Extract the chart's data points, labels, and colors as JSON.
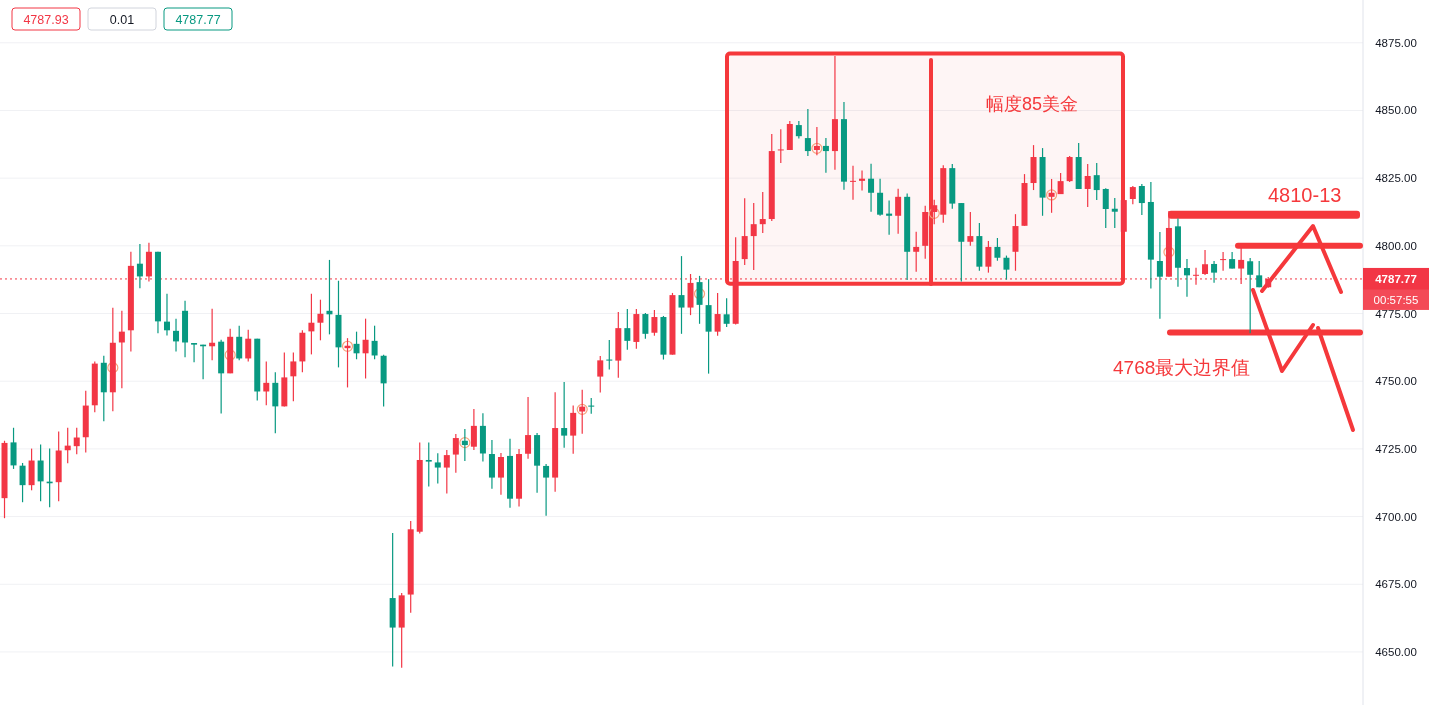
{
  "chart_data": {
    "type": "candlestick",
    "categories": [
      null,
      null,
      null,
      null,
      null,
      null,
      null,
      null,
      null,
      null,
      null,
      null,
      null,
      null,
      null,
      null,
      null,
      null,
      null,
      null,
      null,
      null,
      null,
      null,
      null,
      null,
      null,
      null,
      null,
      null,
      null,
      null,
      null,
      null,
      null,
      null,
      null,
      null,
      null,
      null,
      null,
      null,
      null,
      null,
      null,
      null,
      null,
      null,
      null,
      null,
      null,
      null,
      null,
      null,
      null,
      null,
      null,
      null,
      null,
      null,
      null,
      null,
      null,
      null,
      null,
      null,
      null,
      null,
      null,
      null,
      null,
      null,
      null,
      null,
      null,
      null,
      null,
      null,
      null,
      null,
      null,
      null,
      null,
      null,
      null,
      null,
      null,
      null,
      null,
      null,
      null,
      null,
      null,
      null,
      null,
      null,
      null,
      null,
      null,
      null,
      null,
      null,
      null,
      null,
      null,
      null,
      null,
      null,
      null,
      null,
      null,
      null,
      null,
      null,
      null,
      null,
      null,
      null,
      null,
      null,
      null,
      null,
      null,
      null,
      null,
      null,
      null,
      null,
      null,
      null,
      null,
      null,
      null,
      null,
      null,
      null,
      null,
      null,
      null,
      null,
      null,
      null,
      null,
      null,
      null,
      null,
      null,
      null,
      null,
      null,
      null
    ],
    "ohlc": [
      [
        4706.8,
        4728.0,
        4699.4,
        4727.2
      ],
      [
        4727.4,
        4732.8,
        4717.6,
        4718.9
      ],
      [
        4718.8,
        4719.8,
        4705.3,
        4711.6
      ],
      [
        4711.6,
        4725.1,
        4709.7,
        4720.7
      ],
      [
        4720.7,
        4726.6,
        4705.7,
        4713.0
      ],
      [
        4712.9,
        4725.1,
        4703.4,
        4712.3
      ],
      [
        4712.7,
        4731.4,
        4705.7,
        4724.4
      ],
      [
        4724.5,
        4732.8,
        4719.7,
        4726.2
      ],
      [
        4726.0,
        4732.8,
        4723.0,
        4729.2
      ],
      [
        4729.3,
        4746.5,
        4723.7,
        4741.0
      ],
      [
        4741.1,
        4757.3,
        4738.5,
        4756.5
      ],
      [
        4756.8,
        4759.4,
        4735.2,
        4745.9
      ],
      [
        4745.9,
        4777.1,
        4738.9,
        4764.2
      ],
      [
        4764.3,
        4776.0,
        4747.4,
        4768.3
      ],
      [
        4768.8,
        4797.8,
        4761.0,
        4792.6
      ],
      [
        4793.4,
        4800.7,
        4784.3,
        4788.7
      ],
      [
        4788.7,
        4801.1,
        4786.8,
        4797.8
      ],
      [
        4797.8,
        4797.8,
        4767.7,
        4772.1
      ],
      [
        4772.0,
        4782.3,
        4766.9,
        4768.8
      ],
      [
        4768.6,
        4773.1,
        4761.0,
        4764.7
      ],
      [
        4776.0,
        4779.7,
        4758.8,
        4764.3
      ],
      [
        4764.1,
        4764.1,
        4757.0,
        4763.5
      ],
      [
        4763.5,
        4763.5,
        4750.7,
        4762.9
      ],
      [
        4762.9,
        4776.8,
        4757.7,
        4764.2
      ],
      [
        4764.6,
        4765.3,
        4738.1,
        4752.9
      ],
      [
        4752.9,
        4769.4,
        4752.9,
        4766.4
      ],
      [
        4766.4,
        4770.5,
        4757.7,
        4758.4
      ],
      [
        4758.4,
        4769.0,
        4757.3,
        4765.7
      ],
      [
        4765.7,
        4765.7,
        4742.9,
        4746.2
      ],
      [
        4746.2,
        4757.3,
        4741.1,
        4749.4
      ],
      [
        4749.4,
        4753.3,
        4730.8,
        4740.7
      ],
      [
        4740.7,
        4760.6,
        4740.7,
        4751.4
      ],
      [
        4751.8,
        4760.6,
        4742.6,
        4757.3
      ],
      [
        4757.3,
        4768.8,
        4753.3,
        4767.9
      ],
      [
        4768.4,
        4782.3,
        4759.9,
        4771.6
      ],
      [
        4771.6,
        4780.1,
        4765.1,
        4774.9
      ],
      [
        4776.0,
        4794.8,
        4767.3,
        4774.7
      ],
      [
        4774.5,
        4787.1,
        4755.1,
        4762.5
      ],
      [
        4762.2,
        4765.9,
        4747.7,
        4763.1
      ],
      [
        4763.8,
        4768.3,
        4758.1,
        4760.3
      ],
      [
        4760.3,
        4773.1,
        4751.0,
        4765.3
      ],
      [
        4764.9,
        4770.5,
        4758.1,
        4759.5
      ],
      [
        4759.4,
        4759.8,
        4740.7,
        4749.2
      ],
      [
        4669.9,
        4693.9,
        4644.6,
        4659.0
      ],
      [
        4659.0,
        4671.8,
        4644.2,
        4670.9
      ],
      [
        4671.2,
        4698.4,
        4664.5,
        4695.3
      ],
      [
        4694.4,
        4727.4,
        4693.7,
        4720.9
      ],
      [
        4720.9,
        4727.4,
        4711.1,
        4720.3
      ],
      [
        4720.0,
        4723.4,
        4712.2,
        4718.1
      ],
      [
        4718.1,
        4724.6,
        4708.5,
        4722.7
      ],
      [
        4722.9,
        4730.5,
        4716.2,
        4729.0
      ],
      [
        4728.0,
        4732.3,
        4720.5,
        4726.4
      ],
      [
        4725.8,
        4739.7,
        4724.6,
        4733.5
      ],
      [
        4733.5,
        4738.2,
        4720.3,
        4723.3
      ],
      [
        4723.1,
        4728.3,
        4710.3,
        4714.4
      ],
      [
        4714.4,
        4723.5,
        4708.1,
        4722.0
      ],
      [
        4722.4,
        4728.7,
        4703.3,
        4706.6
      ],
      [
        4706.6,
        4725.0,
        4703.7,
        4723.1
      ],
      [
        4723.2,
        4744.2,
        4721.4,
        4730.1
      ],
      [
        4730.1,
        4730.9,
        4708.8,
        4718.8
      ],
      [
        4718.7,
        4719.4,
        4700.3,
        4714.4
      ],
      [
        4714.4,
        4745.9,
        4709.2,
        4732.7
      ],
      [
        4732.7,
        4749.7,
        4725.4,
        4729.9
      ],
      [
        4729.9,
        4741.0,
        4723.2,
        4738.3
      ],
      [
        4738.8,
        4746.8,
        4730.6,
        4740.6
      ],
      [
        4741.0,
        4743.8,
        4738.0,
        4740.6
      ],
      [
        4751.7,
        4759.3,
        4745.8,
        4757.7
      ],
      [
        4758.0,
        4765.2,
        4754.3,
        4757.6
      ],
      [
        4757.6,
        4775.6,
        4751.3,
        4769.6
      ],
      [
        4769.6,
        4776.7,
        4761.6,
        4764.9
      ],
      [
        4764.5,
        4776.7,
        4762.0,
        4774.8
      ],
      [
        4774.8,
        4775.2,
        4765.7,
        4767.5
      ],
      [
        4767.9,
        4776.3,
        4766.8,
        4773.7
      ],
      [
        4773.7,
        4774.1,
        4758.0,
        4759.8
      ],
      [
        4759.8,
        4782.6,
        4759.8,
        4781.8
      ],
      [
        4781.8,
        4796.2,
        4767.5,
        4777.2
      ],
      [
        4777.2,
        4789.6,
        4774.4,
        4786.3
      ],
      [
        4786.6,
        4788.9,
        4771.2,
        4778.2
      ],
      [
        4778.1,
        4787.7,
        4752.8,
        4768.3
      ],
      [
        4768.3,
        4782.6,
        4766.8,
        4774.8
      ],
      [
        4774.7,
        4780.6,
        4770.0,
        4771.2
      ],
      [
        4771.2,
        4803.2,
        4770.9,
        4794.4
      ],
      [
        4795.1,
        4817.6,
        4792.9,
        4803.6
      ],
      [
        4803.6,
        4815.8,
        4791.1,
        4808.0
      ],
      [
        4808.0,
        4819.9,
        4804.7,
        4809.9
      ],
      [
        4809.9,
        4841.3,
        4809.2,
        4835.0
      ],
      [
        4835.3,
        4843.1,
        4830.6,
        4835.6
      ],
      [
        4835.4,
        4846.1,
        4835.4,
        4845.0
      ],
      [
        4844.6,
        4846.1,
        4839.6,
        4840.5
      ],
      [
        4839.8,
        4850.5,
        4833.2,
        4835.0
      ],
      [
        4835.4,
        4843.9,
        4833.5,
        4836.9
      ],
      [
        4836.9,
        4839.8,
        4827.0,
        4835.0
      ],
      [
        4835.0,
        4870.1,
        4828.1,
        4846.8
      ],
      [
        4846.8,
        4853.1,
        4820.7,
        4823.7
      ],
      [
        4823.7,
        4829.6,
        4817.0,
        4824.0
      ],
      [
        4824.0,
        4827.8,
        4820.4,
        4824.8
      ],
      [
        4824.8,
        4830.3,
        4812.6,
        4819.6
      ],
      [
        4819.6,
        4824.8,
        4811.1,
        4811.5
      ],
      [
        4811.9,
        4816.7,
        4804.1,
        4811.1
      ],
      [
        4811.1,
        4821.1,
        4804.5,
        4818.1
      ],
      [
        4818.1,
        4819.3,
        4787.4,
        4797.8
      ],
      [
        4797.8,
        4805.2,
        4790.4,
        4799.6
      ],
      [
        4800.0,
        4814.8,
        4795.2,
        4812.5
      ],
      [
        4812.5,
        4817.0,
        4808.0,
        4815.0
      ],
      [
        4811.5,
        4829.8,
        4808.5,
        4828.7
      ],
      [
        4828.7,
        4830.2,
        4813.7,
        4815.6
      ],
      [
        4815.8,
        4815.8,
        4786.8,
        4801.5
      ],
      [
        4801.5,
        4812.5,
        4800.0,
        4803.6
      ],
      [
        4803.6,
        4808.4,
        4790.8,
        4792.3
      ],
      [
        4792.3,
        4801.8,
        4790.1,
        4799.6
      ],
      [
        4799.6,
        4802.9,
        4794.5,
        4795.6
      ],
      [
        4795.6,
        4796.4,
        4787.5,
        4791.2
      ],
      [
        4797.8,
        4811.7,
        4790.8,
        4807.3
      ],
      [
        4807.4,
        4826.5,
        4807.4,
        4823.2
      ],
      [
        4823.2,
        4837.2,
        4820.6,
        4832.8
      ],
      [
        4832.8,
        4836.1,
        4811.1,
        4817.8
      ],
      [
        4818.1,
        4824.7,
        4812.2,
        4819.6
      ],
      [
        4819.1,
        4826.9,
        4819.1,
        4823.9
      ],
      [
        4823.9,
        4833.2,
        4823.6,
        4832.8
      ],
      [
        4832.8,
        4838.0,
        4821.0,
        4821.0
      ],
      [
        4821.0,
        4830.2,
        4814.3,
        4825.8
      ],
      [
        4826.1,
        4830.6,
        4816.9,
        4820.6
      ],
      [
        4821.0,
        4821.3,
        4806.6,
        4813.6
      ],
      [
        4813.7,
        4817.7,
        4806.6,
        4812.6
      ],
      [
        4805.2,
        4817.2,
        4805.2,
        4816.9
      ],
      [
        4817.3,
        4822.1,
        4815.4,
        4821.7
      ],
      [
        4822.1,
        4822.8,
        4811.4,
        4815.8
      ],
      [
        4816.2,
        4823.6,
        4784.2,
        4794.9
      ],
      [
        4794.4,
        4805.1,
        4773.1,
        4788.6
      ],
      [
        4788.6,
        4812.9,
        4788.6,
        4806.6
      ],
      [
        4807.2,
        4810.1,
        4784.9,
        4791.9
      ],
      [
        4791.8,
        4795.1,
        4781.2,
        4789.1
      ],
      [
        4789.0,
        4791.9,
        4785.6,
        4789.3
      ],
      [
        4789.6,
        4798.5,
        4789.2,
        4793.2
      ],
      [
        4793.3,
        4794.4,
        4786.4,
        4790.1
      ],
      [
        4794.8,
        4797.7,
        4790.8,
        4795.1
      ],
      [
        4795.1,
        4797.7,
        4791.6,
        4791.6
      ],
      [
        4791.6,
        4799.9,
        4785.9,
        4794.8
      ],
      [
        4794.3,
        4795.5,
        4767.7,
        4789.3
      ],
      [
        4789.1,
        4794.4,
        4784.7,
        4784.7
      ],
      [
        4784.7,
        4788.5,
        4784.5,
        4787.77
      ],
      null,
      null,
      null,
      null,
      null,
      null,
      null,
      null,
      null,
      null
    ],
    "ylim": [
      4630.4,
      4890.8
    ],
    "yticks": [
      {
        "value": 4650,
        "label": "4650.00"
      },
      {
        "value": 4675,
        "label": "4675.00"
      },
      {
        "value": 4700,
        "label": "4700.00"
      },
      {
        "value": 4725,
        "label": "4725.00"
      },
      {
        "value": 4750,
        "label": "4750.00"
      },
      {
        "value": 4775,
        "label": "4775.00"
      },
      {
        "value": 4800,
        "label": "4800.00"
      },
      {
        "value": 4825,
        "label": "4825.00"
      },
      {
        "value": 4850,
        "label": "4850.00"
      },
      {
        "value": 4875,
        "label": "4875.00"
      }
    ],
    "grid": "y",
    "ref_lines": [
      {
        "axis": "y",
        "value": 4787.77,
        "label": "4787.77",
        "color": "#f23645",
        "line_style": "dotted"
      },
      {
        "axis": "y",
        "value": 4800,
        "color": "#f5383b"
      },
      {
        "axis": "y",
        "value": 4768,
        "label": "4768最大边界值",
        "color": "#f5383b"
      }
    ],
    "bands": [
      {
        "axis": "y",
        "from": 4810,
        "to": 4813,
        "label": "4810-13",
        "color": "#f5383b"
      },
      {
        "axis": "y",
        "from": 4786,
        "to": 4871,
        "label": "幅度85美金",
        "color": "#f5383b"
      }
    ],
    "annotations": [
      "4787.93",
      "0.01",
      "4787.77",
      "00:57:55"
    ]
  }
}
